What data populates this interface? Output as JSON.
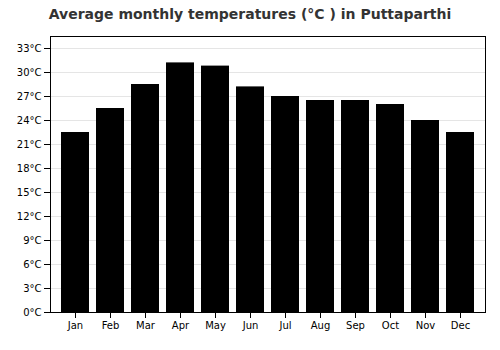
{
  "chart_data": {
    "type": "bar",
    "title": "Average monthly temperatures (°C ) in Puttaparthi",
    "categories": [
      "Jan",
      "Feb",
      "Mar",
      "Apr",
      "May",
      "Jun",
      "Jul",
      "Aug",
      "Sep",
      "Oct",
      "Nov",
      "Dec"
    ],
    "values": [
      22.5,
      25.5,
      28.5,
      31.2,
      30.8,
      28.2,
      27.0,
      26.5,
      26.5,
      26.0,
      24.0,
      22.5
    ],
    "ylim": [
      0,
      34.5
    ],
    "yticks": [
      {
        "value": 0,
        "label": "0°C"
      },
      {
        "value": 3,
        "label": "3°C"
      },
      {
        "value": 6,
        "label": "6°C"
      },
      {
        "value": 9,
        "label": "9°C"
      },
      {
        "value": 12,
        "label": "12°C"
      },
      {
        "value": 15,
        "label": "15°C"
      },
      {
        "value": 18,
        "label": "18°C"
      },
      {
        "value": 21,
        "label": "21°C"
      },
      {
        "value": 24,
        "label": "24°C"
      },
      {
        "value": 27,
        "label": "27°C"
      },
      {
        "value": 30,
        "label": "30°C"
      },
      {
        "value": 33,
        "label": "33°C"
      }
    ],
    "grid": true
  }
}
